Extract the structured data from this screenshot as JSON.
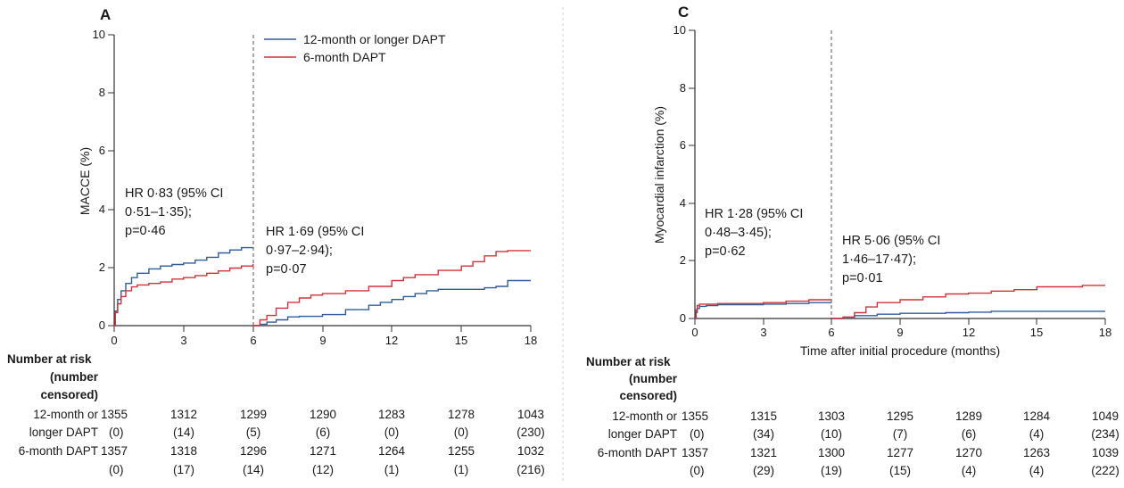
{
  "chart_data": [
    {
      "type": "line",
      "panel": "A",
      "ylabel": "MACCE (%)",
      "xlabel": "",
      "xlim": [
        0,
        18
      ],
      "ylim": [
        0,
        10
      ],
      "x_ticks": [
        "0",
        "3",
        "6",
        "9",
        "12",
        "15",
        "18"
      ],
      "y_ticks": [
        "0",
        "2",
        "4",
        "6",
        "8",
        "10"
      ],
      "legend": [
        "12-month or longer DAPT",
        "6-month DAPT"
      ],
      "annotations": [
        {
          "lines": [
            "HR 0·83 (95% CI",
            "0·51–1·35);",
            "p=0·46"
          ]
        },
        {
          "lines": [
            "HR 1·69 (95% CI",
            "0·97–2·94);",
            "p=0·07"
          ]
        }
      ],
      "series": [
        {
          "name": "12-month or longer DAPT",
          "color": "#2f5d9c",
          "segments": [
            [
              [
                0,
                0
              ],
              [
                0.05,
                0.5
              ],
              [
                0.15,
                0.9
              ],
              [
                0.3,
                1.2
              ],
              [
                0.5,
                1.45
              ],
              [
                0.75,
                1.65
              ],
              [
                1,
                1.8
              ],
              [
                1.5,
                1.95
              ],
              [
                2,
                2.05
              ],
              [
                2.5,
                2.1
              ],
              [
                3,
                2.15
              ],
              [
                3.5,
                2.25
              ],
              [
                4,
                2.35
              ],
              [
                4.5,
                2.5
              ],
              [
                5,
                2.6
              ],
              [
                5.5,
                2.68
              ],
              [
                6,
                2.68
              ]
            ],
            [
              [
                6,
                0
              ],
              [
                6.3,
                0.05
              ],
              [
                6.6,
                0.12
              ],
              [
                7,
                0.2
              ],
              [
                7.5,
                0.3
              ],
              [
                8,
                0.32
              ],
              [
                9,
                0.38
              ],
              [
                10,
                0.55
              ],
              [
                11,
                0.7
              ],
              [
                11.5,
                0.8
              ],
              [
                12,
                0.9
              ],
              [
                12.5,
                1.0
              ],
              [
                13,
                1.1
              ],
              [
                13.5,
                1.2
              ],
              [
                14,
                1.25
              ],
              [
                15,
                1.25
              ],
              [
                16,
                1.3
              ],
              [
                16.5,
                1.35
              ],
              [
                17,
                1.55
              ],
              [
                18,
                1.55
              ]
            ]
          ]
        },
        {
          "name": "6-month DAPT",
          "color": "#d0343a",
          "segments": [
            [
              [
                0,
                0
              ],
              [
                0.05,
                0.45
              ],
              [
                0.15,
                0.75
              ],
              [
                0.3,
                1.0
              ],
              [
                0.5,
                1.2
              ],
              [
                0.75,
                1.33
              ],
              [
                1,
                1.4
              ],
              [
                1.5,
                1.45
              ],
              [
                2,
                1.5
              ],
              [
                2.5,
                1.6
              ],
              [
                3,
                1.65
              ],
              [
                3.5,
                1.72
              ],
              [
                4,
                1.8
              ],
              [
                4.5,
                1.88
              ],
              [
                5,
                1.98
              ],
              [
                5.5,
                2.05
              ],
              [
                6,
                2.12
              ]
            ],
            [
              [
                6,
                0
              ],
              [
                6.3,
                0.2
              ],
              [
                6.6,
                0.35
              ],
              [
                7,
                0.6
              ],
              [
                7.5,
                0.8
              ],
              [
                8,
                0.95
              ],
              [
                8.5,
                1.05
              ],
              [
                9,
                1.1
              ],
              [
                10,
                1.2
              ],
              [
                11,
                1.35
              ],
              [
                12,
                1.55
              ],
              [
                12.5,
                1.65
              ],
              [
                13,
                1.75
              ],
              [
                14,
                1.9
              ],
              [
                15,
                2.05
              ],
              [
                15.5,
                2.2
              ],
              [
                16,
                2.4
              ],
              [
                16.5,
                2.55
              ],
              [
                17,
                2.58
              ],
              [
                18,
                2.58
              ]
            ]
          ]
        }
      ],
      "number_at_risk": {
        "header": [
          "Number at risk",
          "(number",
          "censored)"
        ],
        "groups": [
          {
            "label_lines": [
              "12-month or",
              "longer DAPT"
            ],
            "at_risk": [
              "1355",
              "1312",
              "1299",
              "1290",
              "1283",
              "1278",
              "1043"
            ],
            "censored": [
              "(0)",
              "(14)",
              "(5)",
              "(6)",
              "(0)",
              "(0)",
              "(230)"
            ]
          },
          {
            "label_lines": [
              "6-month DAPT"
            ],
            "at_risk": [
              "1357",
              "1318",
              "1296",
              "1271",
              "1264",
              "1255",
              "1032"
            ],
            "censored": [
              "(0)",
              "(17)",
              "(14)",
              "(12)",
              "(1)",
              "(1)",
              "(216)"
            ]
          }
        ]
      }
    },
    {
      "type": "line",
      "panel": "C",
      "ylabel": "Myocardial infarction (%)",
      "xlabel": "Time after initial procedure (months)",
      "xlim": [
        0,
        18
      ],
      "ylim": [
        0,
        10
      ],
      "x_ticks": [
        "0",
        "3",
        "6",
        "9",
        "12",
        "15",
        "18"
      ],
      "y_ticks": [
        "0",
        "2",
        "4",
        "6",
        "8",
        "10"
      ],
      "annotations": [
        {
          "lines": [
            "HR 1·28 (95% CI",
            "0·48–3·45);",
            "p=0·62"
          ]
        },
        {
          "lines": [
            "HR 5·06 (95% CI",
            "1·46–17·47);",
            "p=0·01"
          ]
        }
      ],
      "series": [
        {
          "name": "12-month or longer DAPT",
          "color": "#2f5d9c",
          "segments": [
            [
              [
                0,
                0
              ],
              [
                0.05,
                0.2
              ],
              [
                0.1,
                0.35
              ],
              [
                0.2,
                0.42
              ],
              [
                0.5,
                0.45
              ],
              [
                1,
                0.48
              ],
              [
                3,
                0.5
              ],
              [
                4,
                0.52
              ],
              [
                5,
                0.55
              ],
              [
                6,
                0.55
              ]
            ],
            [
              [
                6,
                0
              ],
              [
                6.5,
                0.05
              ],
              [
                7,
                0.1
              ],
              [
                8,
                0.15
              ],
              [
                9,
                0.18
              ],
              [
                11,
                0.2
              ],
              [
                12,
                0.22
              ],
              [
                13,
                0.25
              ],
              [
                18,
                0.25
              ]
            ]
          ]
        },
        {
          "name": "6-month DAPT",
          "color": "#d0343a",
          "segments": [
            [
              [
                0,
                0
              ],
              [
                0.05,
                0.3
              ],
              [
                0.1,
                0.45
              ],
              [
                0.2,
                0.5
              ],
              [
                1,
                0.52
              ],
              [
                3,
                0.55
              ],
              [
                4,
                0.6
              ],
              [
                5,
                0.65
              ],
              [
                6,
                0.65
              ]
            ],
            [
              [
                6,
                0
              ],
              [
                6.5,
                0.05
              ],
              [
                7,
                0.2
              ],
              [
                7.5,
                0.4
              ],
              [
                8,
                0.55
              ],
              [
                9,
                0.65
              ],
              [
                10,
                0.75
              ],
              [
                11,
                0.85
              ],
              [
                12,
                0.88
              ],
              [
                13,
                0.95
              ],
              [
                14,
                1.0
              ],
              [
                15,
                1.1
              ],
              [
                16,
                1.1
              ],
              [
                17,
                1.15
              ],
              [
                18,
                1.15
              ]
            ]
          ]
        }
      ],
      "number_at_risk": {
        "header": [
          "Number at risk",
          "(number",
          "censored)"
        ],
        "groups": [
          {
            "label_lines": [
              "12-month or",
              "longer DAPT"
            ],
            "at_risk": [
              "1355",
              "1315",
              "1303",
              "1295",
              "1289",
              "1284",
              "1049"
            ],
            "censored": [
              "(0)",
              "(34)",
              "(10)",
              "(7)",
              "(6)",
              "(4)",
              "(234)"
            ]
          },
          {
            "label_lines": [
              "6-month DAPT"
            ],
            "at_risk": [
              "1357",
              "1321",
              "1300",
              "1277",
              "1270",
              "1263",
              "1039"
            ],
            "censored": [
              "(0)",
              "(29)",
              "(19)",
              "(15)",
              "(4)",
              "(4)",
              "(222)"
            ]
          }
        ]
      }
    }
  ]
}
